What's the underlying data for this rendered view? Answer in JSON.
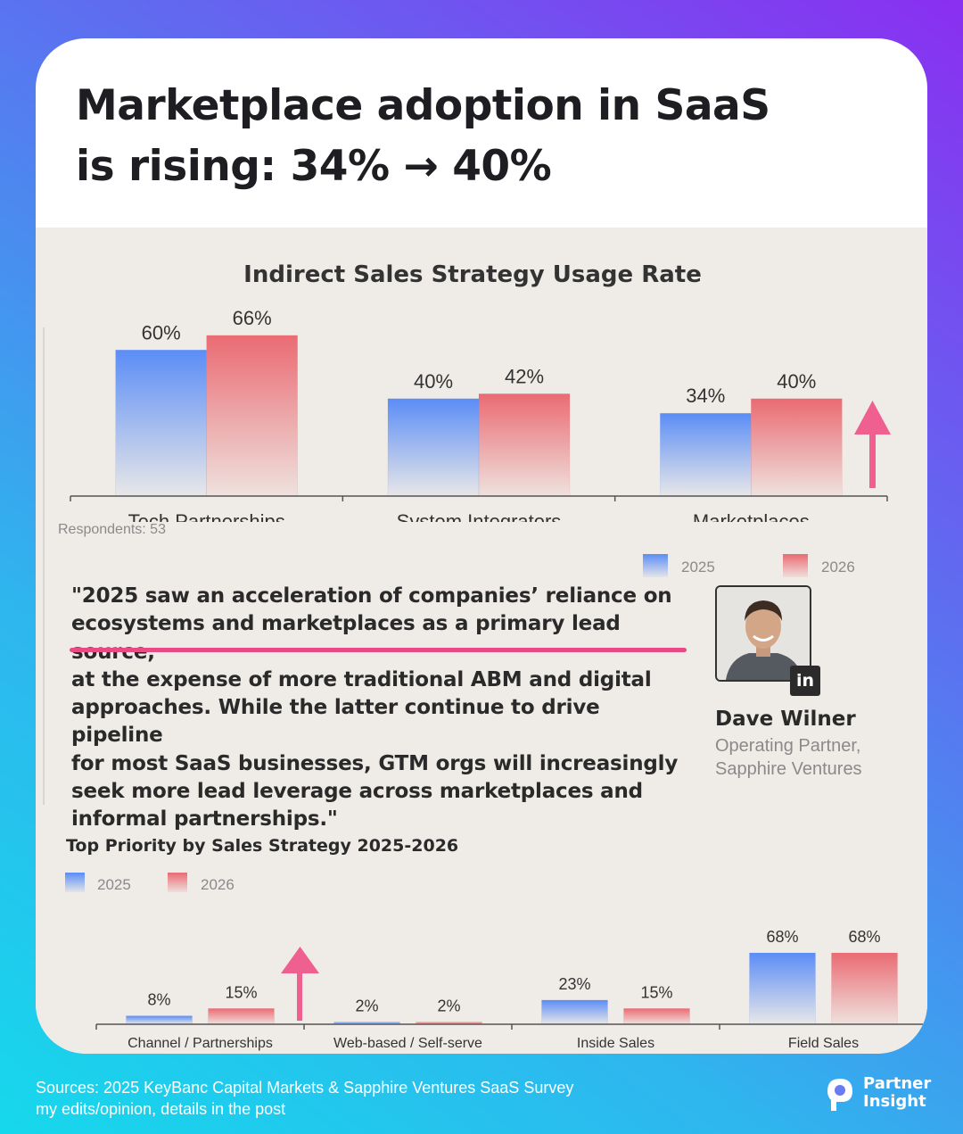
{
  "headline": {
    "line1": "Marketplace adoption in SaaS",
    "line2": "is rising: 34% → 40%"
  },
  "colors": {
    "series_2025": "#5b8df6",
    "series_2026": "#ea6b73",
    "arrow": "#ef5f8f",
    "underline": "#e84a83"
  },
  "chart_data": [
    {
      "type": "bar",
      "title": "Indirect Sales Strategy Usage Rate",
      "categories": [
        "Tech Partnerships",
        "System Integrators",
        "Marketplaces"
      ],
      "series": [
        {
          "name": "2025",
          "values": [
            60,
            40,
            34
          ]
        },
        {
          "name": "2026",
          "values": [
            66,
            42,
            40
          ]
        }
      ],
      "value_labels": {
        "2025": [
          "60%",
          "40%",
          "34%"
        ],
        "2026": [
          "66%",
          "42%",
          "40%"
        ]
      },
      "ylim": [
        0,
        80
      ],
      "grid": false,
      "legend": "bottom-right",
      "annotation": "Respondents: 53"
    },
    {
      "type": "bar",
      "title": "Top Priority by Sales Strategy 2025-2026",
      "categories": [
        "Channel / Partnerships",
        "Web-based / Self-serve",
        "Inside Sales",
        "Field Sales"
      ],
      "series": [
        {
          "name": "2025",
          "values": [
            8,
            2,
            23,
            68
          ]
        },
        {
          "name": "2026",
          "values": [
            15,
            2,
            15,
            68
          ]
        }
      ],
      "value_labels": {
        "2025": [
          "8%",
          "2%",
          "23%",
          "68%"
        ],
        "2026": [
          "15%",
          "2%",
          "15%",
          "68%"
        ]
      },
      "ylim": [
        0,
        80
      ],
      "grid": false,
      "legend": "top-left"
    }
  ],
  "quote": {
    "line1": "\"2025 saw an acceleration of companies’ reliance on",
    "line2": "ecosystems and marketplaces as a primary lead source,",
    "line3": "at the expense of more traditional ABM and digital",
    "line4": "approaches. While the latter continue to drive pipeline",
    "line5": "for most SaaS businesses, GTM orgs will increasingly",
    "line6": "seek more lead leverage across marketplaces and",
    "line7": "informal partnerships.\""
  },
  "person": {
    "name": "Dave Wilner",
    "role_line1": "Operating Partner,",
    "role_line2": "Sapphire Ventures",
    "badge": "in",
    "badge_icon": "linkedin-icon"
  },
  "footer": {
    "source_line1": "Sources: 2025 KeyBanc Capital Markets & Sapphire Ventures SaaS Survey",
    "source_line2": "my edits/opinion, details in the post",
    "brand_line1": "Partner",
    "brand_line2": "Insight"
  }
}
